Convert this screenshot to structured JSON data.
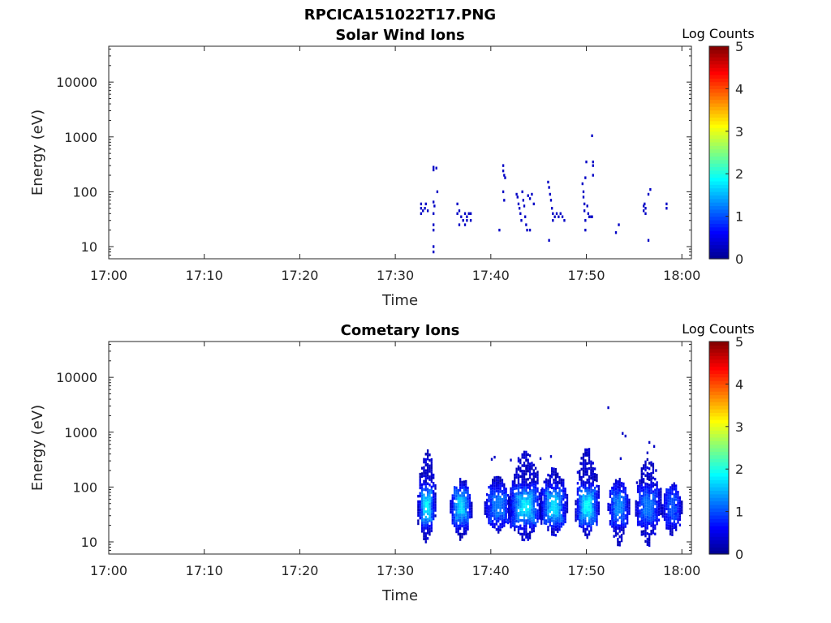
{
  "figure": {
    "title": "RPCICA151022T17.PNG"
  },
  "colormap": [
    "#00008f",
    "#0000ff",
    "#0080ff",
    "#00ffff",
    "#80ff80",
    "#ffff00",
    "#ff8000",
    "#ff0000",
    "#800000"
  ],
  "chart_data": [
    {
      "type": "heatmap",
      "title": "Solar Wind Ions",
      "xlabel": "Time",
      "ylabel": "Energy (eV)",
      "yscale": "log",
      "xlim": [
        "17:00",
        "18:01"
      ],
      "ylim": [
        6,
        45000
      ],
      "x_ticks": [
        "17:00",
        "17:10",
        "17:20",
        "17:30",
        "17:40",
        "17:50",
        "18:00"
      ],
      "y_ticks": [
        "10",
        "100",
        "1000",
        "10000"
      ],
      "colorbar": {
        "label": "Log Counts",
        "range": [
          0,
          5
        ],
        "ticks": [
          "0",
          "1",
          "2",
          "3",
          "4",
          "5"
        ]
      },
      "cells_note": "each cell: [time in minutes after 17:00, energy eV, log counts]",
      "cells": [
        [
          32.7,
          50,
          0.3
        ],
        [
          32.7,
          60,
          0.3
        ],
        [
          32.7,
          40,
          0.3
        ],
        [
          32.9,
          45,
          0.3
        ],
        [
          33.1,
          50,
          0.3
        ],
        [
          33.2,
          60,
          0.3
        ],
        [
          33.4,
          45,
          0.3
        ],
        [
          34.0,
          280,
          0.3
        ],
        [
          34.0,
          250,
          0.3
        ],
        [
          34.0,
          65,
          0.3
        ],
        [
          34.0,
          40,
          0.3
        ],
        [
          34.0,
          25,
          0.3
        ],
        [
          34.0,
          20,
          0.3
        ],
        [
          34.0,
          8,
          0.3
        ],
        [
          34.0,
          10,
          0.3
        ],
        [
          34.3,
          270,
          0.3
        ],
        [
          34.4,
          100,
          0.3
        ],
        [
          34.1,
          55,
          0.3
        ],
        [
          36.5,
          60,
          0.3
        ],
        [
          36.5,
          40,
          0.3
        ],
        [
          36.7,
          45,
          0.3
        ],
        [
          36.7,
          25,
          0.3
        ],
        [
          36.9,
          35,
          0.3
        ],
        [
          37.1,
          30,
          0.3
        ],
        [
          37.3,
          40,
          0.3
        ],
        [
          37.3,
          25,
          0.3
        ],
        [
          37.5,
          35,
          0.3
        ],
        [
          37.5,
          30,
          0.3
        ],
        [
          37.7,
          40,
          0.3
        ],
        [
          37.9,
          30,
          0.3
        ],
        [
          37.9,
          40,
          0.3
        ],
        [
          40.9,
          20,
          0.3
        ],
        [
          41.3,
          300,
          0.3
        ],
        [
          41.3,
          240,
          0.3
        ],
        [
          41.4,
          200,
          0.3
        ],
        [
          41.5,
          180,
          0.3
        ],
        [
          41.3,
          100,
          0.3
        ],
        [
          41.4,
          70,
          0.3
        ],
        [
          42.7,
          90,
          0.3
        ],
        [
          42.8,
          80,
          0.3
        ],
        [
          42.9,
          60,
          0.3
        ],
        [
          43.0,
          50,
          0.3
        ],
        [
          43.1,
          40,
          0.3
        ],
        [
          43.2,
          30,
          0.3
        ],
        [
          43.3,
          100,
          0.3
        ],
        [
          43.4,
          70,
          0.3
        ],
        [
          43.5,
          55,
          0.3
        ],
        [
          43.6,
          35,
          0.3
        ],
        [
          43.7,
          25,
          0.3
        ],
        [
          43.8,
          20,
          0.3
        ],
        [
          43.9,
          85,
          0.3
        ],
        [
          44.1,
          75,
          0.3
        ],
        [
          44.3,
          90,
          0.3
        ],
        [
          44.5,
          60,
          0.3
        ],
        [
          44.1,
          20,
          0.3
        ],
        [
          46.0,
          150,
          0.3
        ],
        [
          46.1,
          120,
          0.3
        ],
        [
          46.2,
          90,
          0.3
        ],
        [
          46.3,
          70,
          0.3
        ],
        [
          46.4,
          50,
          0.3
        ],
        [
          46.5,
          40,
          0.3
        ],
        [
          46.5,
          30,
          0.3
        ],
        [
          46.1,
          13,
          0.3
        ],
        [
          46.7,
          35,
          0.3
        ],
        [
          46.9,
          40,
          0.3
        ],
        [
          47.1,
          35,
          0.3
        ],
        [
          47.3,
          40,
          0.3
        ],
        [
          47.5,
          35,
          0.3
        ],
        [
          47.7,
          30,
          0.3
        ],
        [
          49.6,
          140,
          0.3
        ],
        [
          49.7,
          100,
          0.3
        ],
        [
          49.7,
          80,
          0.3
        ],
        [
          49.8,
          60,
          0.3
        ],
        [
          49.8,
          45,
          0.3
        ],
        [
          49.9,
          30,
          0.3
        ],
        [
          49.9,
          20,
          0.3
        ],
        [
          50.0,
          350,
          0.3
        ],
        [
          49.9,
          180,
          0.3
        ],
        [
          50.1,
          55,
          0.3
        ],
        [
          50.2,
          40,
          0.3
        ],
        [
          50.3,
          35,
          0.3
        ],
        [
          50.5,
          35,
          0.3
        ],
        [
          50.6,
          35,
          0.3
        ],
        [
          50.6,
          1050,
          0.3
        ],
        [
          50.7,
          350,
          0.3
        ],
        [
          50.7,
          300,
          0.3
        ],
        [
          50.7,
          200,
          0.3
        ],
        [
          53.1,
          18,
          0.3
        ],
        [
          53.4,
          25,
          0.3
        ],
        [
          56.0,
          55,
          0.3
        ],
        [
          56.0,
          45,
          0.3
        ],
        [
          56.1,
          60,
          0.3
        ],
        [
          56.2,
          50,
          0.3
        ],
        [
          56.2,
          40,
          0.3
        ],
        [
          56.5,
          90,
          0.3
        ],
        [
          56.7,
          110,
          0.3
        ],
        [
          56.5,
          13,
          0.3
        ],
        [
          58.4,
          60,
          0.3
        ],
        [
          58.4,
          50,
          0.3
        ]
      ]
    },
    {
      "type": "heatmap",
      "title": "Cometary Ions",
      "xlabel": "Time",
      "ylabel": "Energy (eV)",
      "yscale": "log",
      "xlim": [
        "17:00",
        "18:01"
      ],
      "ylim": [
        6,
        45000
      ],
      "x_ticks": [
        "17:00",
        "17:10",
        "17:20",
        "17:30",
        "17:40",
        "17:50",
        "18:00"
      ],
      "y_ticks": [
        "10",
        "100",
        "1000",
        "10000"
      ],
      "colorbar": {
        "label": "Log Counts",
        "range": [
          0,
          5
        ],
        "ticks": [
          "0",
          "1",
          "2",
          "3",
          "4",
          "5"
        ]
      },
      "bursts_note": "each burst: [center minutes after 17:00, half-width minutes, top energy eV, bottom energy eV, peak log counts]",
      "bursts": [
        [
          33.3,
          0.9,
          500,
          8,
          1.9
        ],
        [
          36.9,
          1.1,
          150,
          10,
          1.7
        ],
        [
          40.8,
          1.4,
          160,
          15,
          1.2
        ],
        [
          43.6,
          1.7,
          450,
          9,
          1.8
        ],
        [
          46.6,
          1.4,
          230,
          12,
          1.7
        ],
        [
          50.1,
          1.2,
          520,
          12,
          1.9
        ],
        [
          53.4,
          1.1,
          140,
          8,
          1.3
        ],
        [
          56.5,
          1.3,
          330,
          8,
          1.2
        ],
        [
          59.0,
          1.0,
          120,
          12,
          1.0
        ]
      ],
      "scattered_cells": [
        [
          52.3,
          2800,
          0.3
        ],
        [
          53.8,
          950,
          0.3
        ],
        [
          54.1,
          850,
          0.3
        ],
        [
          53.6,
          330,
          0.3
        ],
        [
          56.6,
          650,
          0.3
        ],
        [
          57.1,
          550,
          0.3
        ],
        [
          56.4,
          420,
          0.3
        ],
        [
          57.3,
          200,
          0.3
        ],
        [
          40.1,
          320,
          0.3
        ],
        [
          40.4,
          350,
          0.3
        ],
        [
          42.1,
          310,
          0.3
        ],
        [
          45.2,
          330,
          0.3
        ],
        [
          46.3,
          360,
          0.3
        ],
        [
          49.4,
          270,
          0.3
        ],
        [
          55.3,
          120,
          0.3
        ]
      ]
    }
  ]
}
